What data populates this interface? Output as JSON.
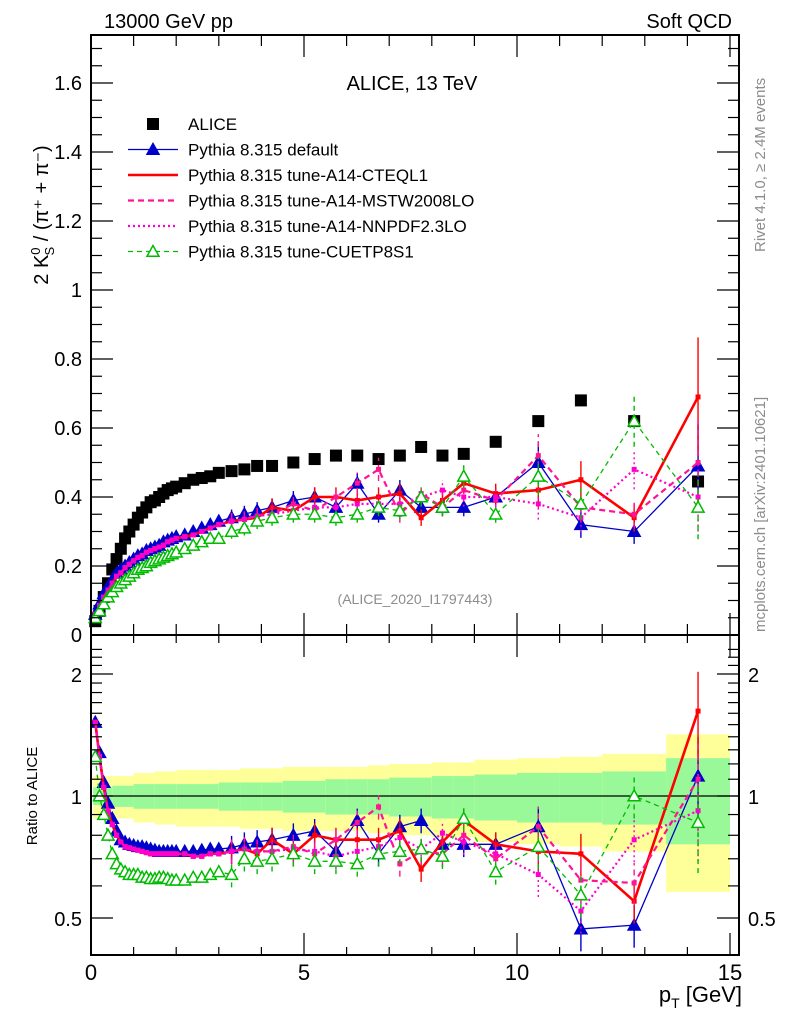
{
  "header": {
    "left": "13000 GeV pp",
    "right": "Soft QCD"
  },
  "side_labels": {
    "top": "Rivet 4.1.0, ≥ 2.4M events",
    "bottom": "mcplots.cern.ch [arXiv:2401.10621]"
  },
  "chart_data": [
    {
      "type": "line",
      "title": "ALICE, 13 TeV",
      "watermark": "(ALICE_2020_I1797443)",
      "xlabel": "",
      "ylabel_parts": {
        "prefix": "2 K",
        "sup": "0",
        "sub": "S",
        "suffix": " / (π⁺ + π⁻)"
      },
      "xlim": [
        0,
        15.3
      ],
      "ylim": [
        0,
        1.75
      ],
      "yticks": [
        "0",
        "0.2",
        "0.4",
        "0.6",
        "0.8",
        "1",
        "1.2",
        "1.4",
        "1.6"
      ],
      "legend_position": "top-left",
      "legend": [
        {
          "name": "ALICE",
          "color": "#000000",
          "style": "square"
        },
        {
          "name": "Pythia 8.315 default",
          "color": "#0000cc",
          "style": "solid-triangle"
        },
        {
          "name": "Pythia 8.315 tune-A14-CTEQL1",
          "color": "#ff0000",
          "style": "solid-thick"
        },
        {
          "name": "Pythia 8.315 tune-A14-MSTW2008LO",
          "color": "#ff1493",
          "style": "dashed"
        },
        {
          "name": "Pythia 8.315 tune-A14-NNPDF2.3LO",
          "color": "#ff00cc",
          "style": "dotted"
        },
        {
          "name": "Pythia 8.315 tune-CUETP8S1",
          "color": "#00bb00",
          "style": "dashed-open-triangle"
        }
      ],
      "x": [
        0.1,
        0.2,
        0.3,
        0.4,
        0.5,
        0.6,
        0.7,
        0.8,
        0.9,
        1.0,
        1.1,
        1.2,
        1.3,
        1.4,
        1.5,
        1.6,
        1.7,
        1.8,
        1.9,
        2.0,
        2.2,
        2.4,
        2.6,
        2.8,
        3.0,
        3.3,
        3.6,
        3.9,
        4.25,
        4.75,
        5.25,
        5.75,
        6.25,
        6.75,
        7.25,
        7.75,
        8.25,
        8.75,
        9.5,
        10.5,
        11.5,
        12.75,
        14.25
      ],
      "series": [
        {
          "name": "ALICE",
          "values": [
            0.04,
            0.07,
            0.11,
            0.15,
            0.19,
            0.22,
            0.25,
            0.28,
            0.3,
            0.32,
            0.34,
            0.355,
            0.37,
            0.385,
            0.39,
            0.4,
            0.41,
            0.42,
            0.425,
            0.43,
            0.44,
            0.45,
            0.455,
            0.46,
            0.47,
            0.475,
            0.48,
            0.49,
            0.49,
            0.5,
            0.51,
            0.52,
            0.52,
            0.51,
            0.52,
            0.545,
            0.52,
            0.525,
            0.56,
            0.62,
            0.68,
            0.62,
            0.445
          ]
        },
        {
          "name": "Pythia 8.315 default",
          "values": [
            0.06,
            0.09,
            0.12,
            0.14,
            0.16,
            0.18,
            0.19,
            0.2,
            0.21,
            0.22,
            0.23,
            0.235,
            0.245,
            0.25,
            0.255,
            0.26,
            0.27,
            0.275,
            0.28,
            0.285,
            0.29,
            0.3,
            0.31,
            0.32,
            0.33,
            0.34,
            0.35,
            0.36,
            0.37,
            0.39,
            0.4,
            0.37,
            0.44,
            0.35,
            0.42,
            0.37,
            0.37,
            0.37,
            0.4,
            0.5,
            0.32,
            0.3,
            0.49
          ]
        },
        {
          "name": "Pythia 8.315 tune-A14-CTEQL1",
          "values": [
            0.06,
            0.085,
            0.11,
            0.13,
            0.15,
            0.17,
            0.18,
            0.195,
            0.205,
            0.215,
            0.225,
            0.23,
            0.24,
            0.245,
            0.25,
            0.255,
            0.26,
            0.27,
            0.275,
            0.28,
            0.285,
            0.29,
            0.3,
            0.31,
            0.32,
            0.33,
            0.335,
            0.34,
            0.37,
            0.36,
            0.4,
            0.4,
            0.39,
            0.4,
            0.41,
            0.34,
            0.39,
            0.44,
            0.41,
            0.42,
            0.45,
            0.34,
            0.69
          ]
        },
        {
          "name": "Pythia 8.315 tune-A14-MSTW2008LO",
          "values": [
            0.06,
            0.085,
            0.11,
            0.13,
            0.15,
            0.17,
            0.18,
            0.195,
            0.205,
            0.215,
            0.225,
            0.23,
            0.24,
            0.245,
            0.25,
            0.255,
            0.26,
            0.27,
            0.275,
            0.28,
            0.285,
            0.29,
            0.3,
            0.31,
            0.32,
            0.33,
            0.335,
            0.345,
            0.35,
            0.38,
            0.36,
            0.4,
            0.44,
            0.48,
            0.35,
            0.41,
            0.37,
            0.42,
            0.39,
            0.52,
            0.37,
            0.35,
            0.5
          ]
        },
        {
          "name": "Pythia 8.315 tune-A14-NNPDF2.3LO",
          "values": [
            0.06,
            0.085,
            0.11,
            0.13,
            0.15,
            0.17,
            0.18,
            0.195,
            0.205,
            0.215,
            0.225,
            0.23,
            0.24,
            0.245,
            0.25,
            0.255,
            0.26,
            0.27,
            0.275,
            0.28,
            0.285,
            0.29,
            0.3,
            0.31,
            0.32,
            0.33,
            0.335,
            0.345,
            0.35,
            0.36,
            0.37,
            0.37,
            0.38,
            0.38,
            0.38,
            0.4,
            0.42,
            0.4,
            0.4,
            0.38,
            0.34,
            0.48,
            0.4
          ]
        },
        {
          "name": "Pythia 8.315 tune-CUETP8S1",
          "values": [
            0.05,
            0.07,
            0.09,
            0.11,
            0.125,
            0.14,
            0.15,
            0.16,
            0.17,
            0.18,
            0.19,
            0.195,
            0.2,
            0.21,
            0.215,
            0.22,
            0.225,
            0.23,
            0.235,
            0.24,
            0.25,
            0.26,
            0.27,
            0.28,
            0.28,
            0.3,
            0.31,
            0.33,
            0.34,
            0.35,
            0.35,
            0.34,
            0.35,
            0.37,
            0.36,
            0.4,
            0.37,
            0.46,
            0.35,
            0.46,
            0.38,
            0.62,
            0.37
          ]
        }
      ]
    },
    {
      "type": "line",
      "title": "",
      "xlabel": "p_T [GeV]",
      "xlabel_parts": {
        "main": "p",
        "sub": "T",
        "suffix": " [GeV]"
      },
      "ylabel": "Ratio to ALICE",
      "xlim": [
        0,
        15.3
      ],
      "ylim": [
        0.36,
        2.35
      ],
      "yscale": "log",
      "xticks": [
        "0",
        "5",
        "10",
        "15"
      ],
      "yticks": [
        "0.5",
        "1",
        "2"
      ],
      "reference_line": 1,
      "bands": {
        "x_edges": [
          0.05,
          0.5,
          1.0,
          1.5,
          2.0,
          2.5,
          3.0,
          3.5,
          4.0,
          4.5,
          5.0,
          5.5,
          6.0,
          6.5,
          7.0,
          7.5,
          8.0,
          8.5,
          9.0,
          10.0,
          11.0,
          12.0,
          13.5,
          15.0
        ],
        "stat_sys_total_up": [
          1.12,
          1.12,
          1.14,
          1.15,
          1.16,
          1.16,
          1.16,
          1.17,
          1.17,
          1.18,
          1.18,
          1.18,
          1.18,
          1.19,
          1.2,
          1.2,
          1.21,
          1.21,
          1.23,
          1.24,
          1.25,
          1.27,
          1.42,
          1.42
        ],
        "stat_up": [
          1.05,
          1.06,
          1.07,
          1.07,
          1.07,
          1.07,
          1.08,
          1.08,
          1.08,
          1.09,
          1.09,
          1.1,
          1.1,
          1.1,
          1.11,
          1.11,
          1.12,
          1.12,
          1.13,
          1.14,
          1.14,
          1.15,
          1.24,
          1.24
        ],
        "stat_colors": {
          "inner": "#99f999",
          "outer": "#ffff99"
        }
      },
      "x": [
        0.1,
        0.2,
        0.3,
        0.4,
        0.5,
        0.6,
        0.7,
        0.8,
        0.9,
        1.0,
        1.1,
        1.2,
        1.3,
        1.4,
        1.5,
        1.6,
        1.7,
        1.8,
        1.9,
        2.0,
        2.2,
        2.4,
        2.6,
        2.8,
        3.0,
        3.3,
        3.6,
        3.9,
        4.25,
        4.75,
        5.25,
        5.75,
        6.25,
        6.75,
        7.25,
        7.75,
        8.25,
        8.75,
        9.5,
        10.5,
        11.5,
        12.75,
        14.25
      ],
      "series": [
        {
          "name": "Pythia 8.315 default",
          "values": [
            1.52,
            1.28,
            1.08,
            0.96,
            0.88,
            0.82,
            0.78,
            0.77,
            0.76,
            0.755,
            0.75,
            0.75,
            0.745,
            0.74,
            0.735,
            0.73,
            0.73,
            0.73,
            0.73,
            0.73,
            0.73,
            0.73,
            0.735,
            0.74,
            0.74,
            0.745,
            0.76,
            0.77,
            0.78,
            0.8,
            0.82,
            0.73,
            0.87,
            0.72,
            0.84,
            0.87,
            0.76,
            0.76,
            0.76,
            0.84,
            0.47,
            0.48,
            1.12
          ]
        },
        {
          "name": "Pythia 8.315 tune-A14-CTEQL1",
          "values": [
            1.52,
            1.25,
            1.05,
            0.92,
            0.85,
            0.8,
            0.77,
            0.75,
            0.745,
            0.74,
            0.735,
            0.73,
            0.725,
            0.72,
            0.72,
            0.72,
            0.72,
            0.72,
            0.72,
            0.72,
            0.72,
            0.71,
            0.71,
            0.72,
            0.72,
            0.73,
            0.74,
            0.72,
            0.78,
            0.72,
            0.8,
            0.78,
            0.78,
            0.78,
            0.82,
            0.66,
            0.77,
            0.87,
            0.76,
            0.73,
            0.72,
            0.55,
            1.62
          ]
        },
        {
          "name": "Pythia 8.315 tune-A14-MSTW2008LO",
          "values": [
            1.52,
            1.25,
            1.05,
            0.92,
            0.85,
            0.8,
            0.77,
            0.75,
            0.745,
            0.74,
            0.735,
            0.73,
            0.725,
            0.72,
            0.72,
            0.72,
            0.72,
            0.72,
            0.72,
            0.72,
            0.72,
            0.71,
            0.71,
            0.72,
            0.72,
            0.73,
            0.74,
            0.73,
            0.73,
            0.75,
            0.72,
            0.78,
            0.86,
            0.94,
            0.68,
            0.73,
            0.72,
            0.8,
            0.7,
            0.84,
            0.62,
            0.61,
            1.1
          ]
        },
        {
          "name": "Pythia 8.315 tune-A14-NNPDF2.3LO",
          "values": [
            1.52,
            1.25,
            1.05,
            0.92,
            0.85,
            0.8,
            0.77,
            0.75,
            0.745,
            0.74,
            0.735,
            0.73,
            0.725,
            0.72,
            0.72,
            0.72,
            0.72,
            0.72,
            0.72,
            0.72,
            0.72,
            0.71,
            0.71,
            0.72,
            0.72,
            0.73,
            0.74,
            0.73,
            0.73,
            0.74,
            0.73,
            0.71,
            0.73,
            0.75,
            0.79,
            0.74,
            0.81,
            0.77,
            0.72,
            0.64,
            0.52,
            0.78,
            0.92
          ]
        },
        {
          "name": "Pythia 8.315 tune-CUETP8S1",
          "values": [
            1.25,
            1.0,
            0.9,
            0.8,
            0.72,
            0.68,
            0.66,
            0.65,
            0.64,
            0.64,
            0.64,
            0.63,
            0.63,
            0.625,
            0.625,
            0.63,
            0.63,
            0.625,
            0.62,
            0.62,
            0.62,
            0.63,
            0.63,
            0.64,
            0.65,
            0.64,
            0.7,
            0.69,
            0.7,
            0.72,
            0.69,
            0.69,
            0.68,
            0.72,
            0.73,
            0.74,
            0.71,
            0.88,
            0.65,
            0.75,
            0.57,
            1.0,
            0.86
          ]
        }
      ]
    }
  ]
}
